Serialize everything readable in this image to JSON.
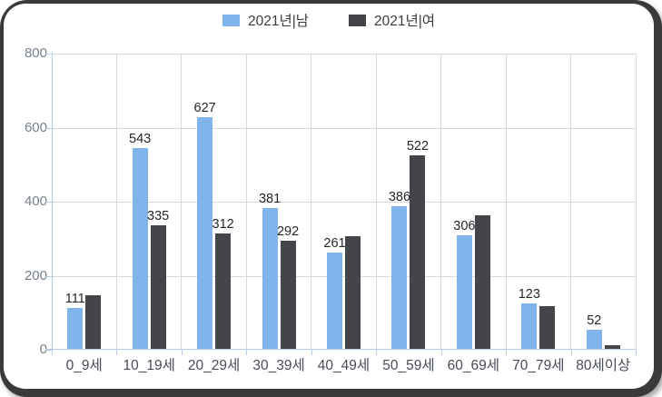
{
  "chart_data": {
    "type": "bar",
    "categories": [
      "0_9세",
      "10_19세",
      "20_29세",
      "30_39세",
      "40_49세",
      "50_59세",
      "60_69세",
      "70_79세",
      "80세이상"
    ],
    "series": [
      {
        "name": "2021년|남",
        "color": "#7FB5EA",
        "values": [
          111,
          543,
          627,
          381,
          261,
          386,
          306,
          123,
          52
        ],
        "data_labels": [
          "111",
          "543",
          "627",
          "381",
          "261",
          "386",
          "306",
          "123",
          "52"
        ]
      },
      {
        "name": "2021년|여",
        "color": "#44454B",
        "values": [
          145,
          335,
          312,
          292,
          305,
          522,
          360,
          115,
          10
        ],
        "data_labels": [
          null,
          "335",
          "312",
          "292",
          null,
          "522",
          null,
          null,
          null
        ]
      }
    ],
    "ylim": [
      0,
      800
    ],
    "yticks": [
      800,
      600,
      400,
      200,
      0
    ],
    "grid": true,
    "legend_position": "top-center"
  },
  "colors": {
    "male_bar": "#7FB5EA",
    "female_bar": "#44454B",
    "gridline": "#D9D9D9",
    "axis_line": "#B7C9E5",
    "y_tick_label": "#76808E",
    "x_tick_label": "#474C59",
    "data_label": "#26262B",
    "frame": "#3A3A3A",
    "background": "#FFFFFF"
  }
}
